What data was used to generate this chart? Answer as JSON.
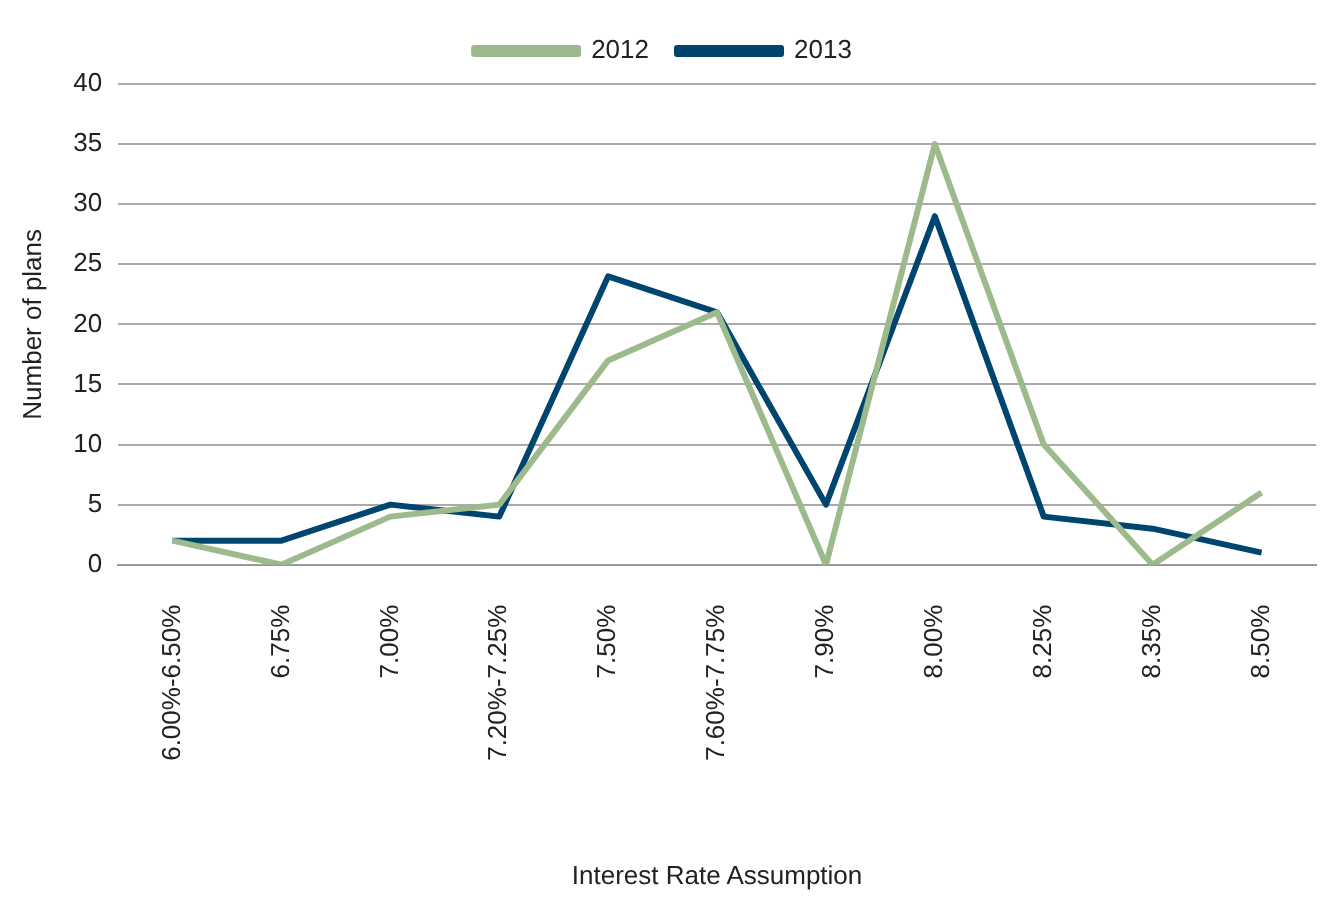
{
  "chart_data": {
    "type": "line",
    "xlabel": "Interest Rate Assumption",
    "ylabel": "Number of plans",
    "categories": [
      "6.00%-6.50%",
      "6.75%",
      "7.00%",
      "7.20%-7.25%",
      "7.50%",
      "7.60%-7.75%",
      "7.90%",
      "8.00%",
      "8.25%",
      "8.35%",
      "8.50%"
    ],
    "series": [
      {
        "name": "2012",
        "color": "#9cba8c",
        "values": [
          2,
          0,
          4,
          5,
          17,
          21,
          0,
          35,
          10,
          0,
          6
        ]
      },
      {
        "name": "2013",
        "color": "#00456e",
        "values": [
          2,
          2,
          5,
          4,
          24,
          21,
          5,
          29,
          4,
          3,
          1
        ]
      }
    ],
    "ylim": [
      0,
      40
    ],
    "yticks": [
      0,
      5,
      10,
      15,
      20,
      25,
      30,
      35,
      40
    ],
    "grid": "y",
    "legend": "top",
    "marker": "none",
    "line_style": "solid"
  }
}
